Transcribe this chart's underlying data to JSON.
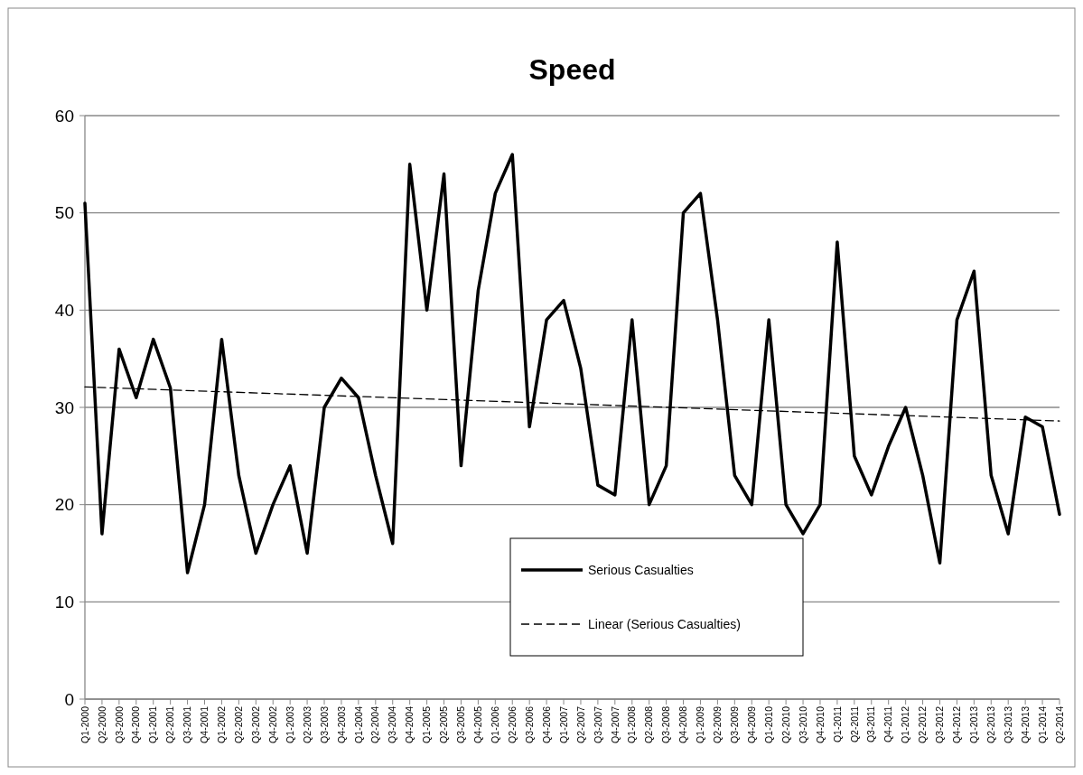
{
  "chart_data": {
    "type": "line",
    "title": "Speed",
    "categories": [
      "Q1-2000",
      "Q2-2000",
      "Q3-2000",
      "Q4-2000",
      "Q1-2001",
      "Q2-2001",
      "Q3-2001",
      "Q4-2001",
      "Q1-2002",
      "Q2-2002",
      "Q3-2002",
      "Q4-2002",
      "Q1-2003",
      "Q2-2003",
      "Q3-2003",
      "Q4-2003",
      "Q1-2004",
      "Q2-2004",
      "Q3-2004",
      "Q4-2004",
      "Q1-2005",
      "Q2-2005",
      "Q3-2005",
      "Q4-2005",
      "Q1-2006",
      "Q2-2006",
      "Q3-2006",
      "Q4-2006",
      "Q1-2007",
      "Q2-2007",
      "Q3-2007",
      "Q4-2007",
      "Q1-2008",
      "Q2-2008",
      "Q3-2008",
      "Q4-2008",
      "Q1-2009",
      "Q2-2009",
      "Q3-2009",
      "Q4-2009",
      "Q1-2010",
      "Q2-2010",
      "Q3-2010",
      "Q4-2010",
      "Q1-2011",
      "Q2-2011",
      "Q3-2011",
      "Q4-2011",
      "Q1-2012",
      "Q2-2012",
      "Q3-2012",
      "Q4-2012",
      "Q1-2013",
      "Q2-2013",
      "Q3-2013",
      "Q4-2013",
      "Q1-2014",
      "Q2-2014"
    ],
    "series": [
      {
        "name": "Serious Casualties",
        "color": "#000000",
        "line_style": "solid",
        "values": [
          51,
          17,
          36,
          31,
          37,
          32,
          13,
          20,
          37,
          23,
          15,
          20,
          24,
          15,
          30,
          33,
          31,
          23,
          16,
          55,
          40,
          54,
          24,
          42,
          52,
          56,
          28,
          39,
          41,
          34,
          22,
          21,
          39,
          20,
          24,
          50,
          52,
          39,
          23,
          20,
          39,
          20,
          17,
          20,
          47,
          25,
          21,
          26,
          30,
          23,
          14,
          39,
          44,
          23,
          17,
          29,
          28,
          19
        ]
      },
      {
        "name": "Linear (Serious Casualties)",
        "color": "#000000",
        "line_style": "dashed",
        "x": [
          "Q1-2000",
          "Q2-2014"
        ],
        "values": [
          32.1,
          28.6
        ]
      }
    ],
    "ylim": [
      0,
      60
    ],
    "yticks": [
      0,
      10,
      20,
      30,
      40,
      50,
      60
    ],
    "grid": "y",
    "legend": "bottom",
    "marker": "none"
  }
}
